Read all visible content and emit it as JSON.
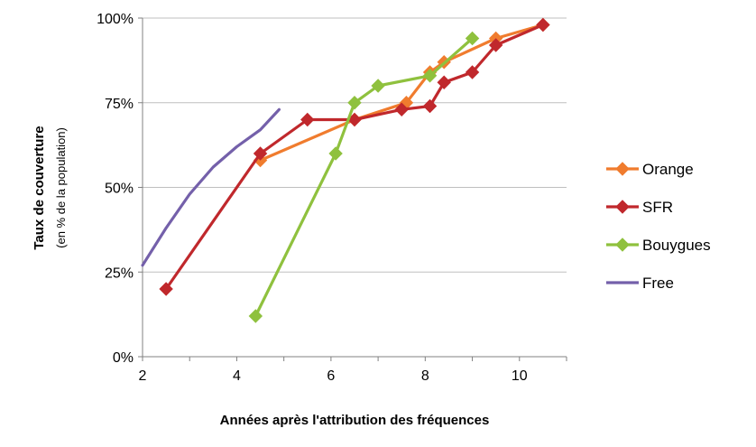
{
  "chart_data": {
    "type": "line",
    "title": "",
    "xlabel": "Années après l'attribution des fréquences",
    "ylabel": "Taux de couverture",
    "ylabel_sub": "(en % de la population)",
    "xlim": [
      2,
      11
    ],
    "ylim": [
      0,
      100
    ],
    "x_ticks": [
      2,
      4,
      6,
      8,
      10
    ],
    "x_tick_labels": [
      "2",
      "4",
      "6",
      "8",
      "10"
    ],
    "y_ticks": [
      0,
      25,
      50,
      75,
      100
    ],
    "y_tick_labels": [
      "0%",
      "25%",
      "50%",
      "75%",
      "100%"
    ],
    "grid": "horizontal",
    "legend_position": "right",
    "series": [
      {
        "name": "Orange",
        "color": "#f07c2e",
        "marker": "diamond",
        "points": [
          [
            4.5,
            58
          ],
          [
            6.5,
            70
          ],
          [
            7.6,
            75
          ],
          [
            8.1,
            84
          ],
          [
            8.4,
            87
          ],
          [
            9.5,
            94
          ],
          [
            10.5,
            98
          ]
        ]
      },
      {
        "name": "SFR",
        "color": "#c0282c",
        "marker": "diamond",
        "points": [
          [
            2.5,
            20
          ],
          [
            4.5,
            60
          ],
          [
            5.5,
            70
          ],
          [
            6.5,
            70
          ],
          [
            7.5,
            73
          ],
          [
            8.1,
            74
          ],
          [
            8.4,
            81
          ],
          [
            9.0,
            84
          ],
          [
            9.5,
            92
          ],
          [
            10.5,
            98
          ]
        ]
      },
      {
        "name": "Bouygues",
        "color": "#8fc13e",
        "marker": "diamond",
        "points": [
          [
            4.4,
            12
          ],
          [
            6.1,
            60
          ],
          [
            6.5,
            75
          ],
          [
            7.0,
            80
          ],
          [
            8.1,
            83
          ],
          [
            9.0,
            94
          ]
        ]
      },
      {
        "name": "Free",
        "color": "#7460aa",
        "marker": "none",
        "points": [
          [
            2.0,
            27
          ],
          [
            2.5,
            38
          ],
          [
            3.0,
            48
          ],
          [
            3.5,
            56
          ],
          [
            4.0,
            62
          ],
          [
            4.5,
            67
          ],
          [
            4.9,
            73
          ]
        ]
      }
    ]
  }
}
